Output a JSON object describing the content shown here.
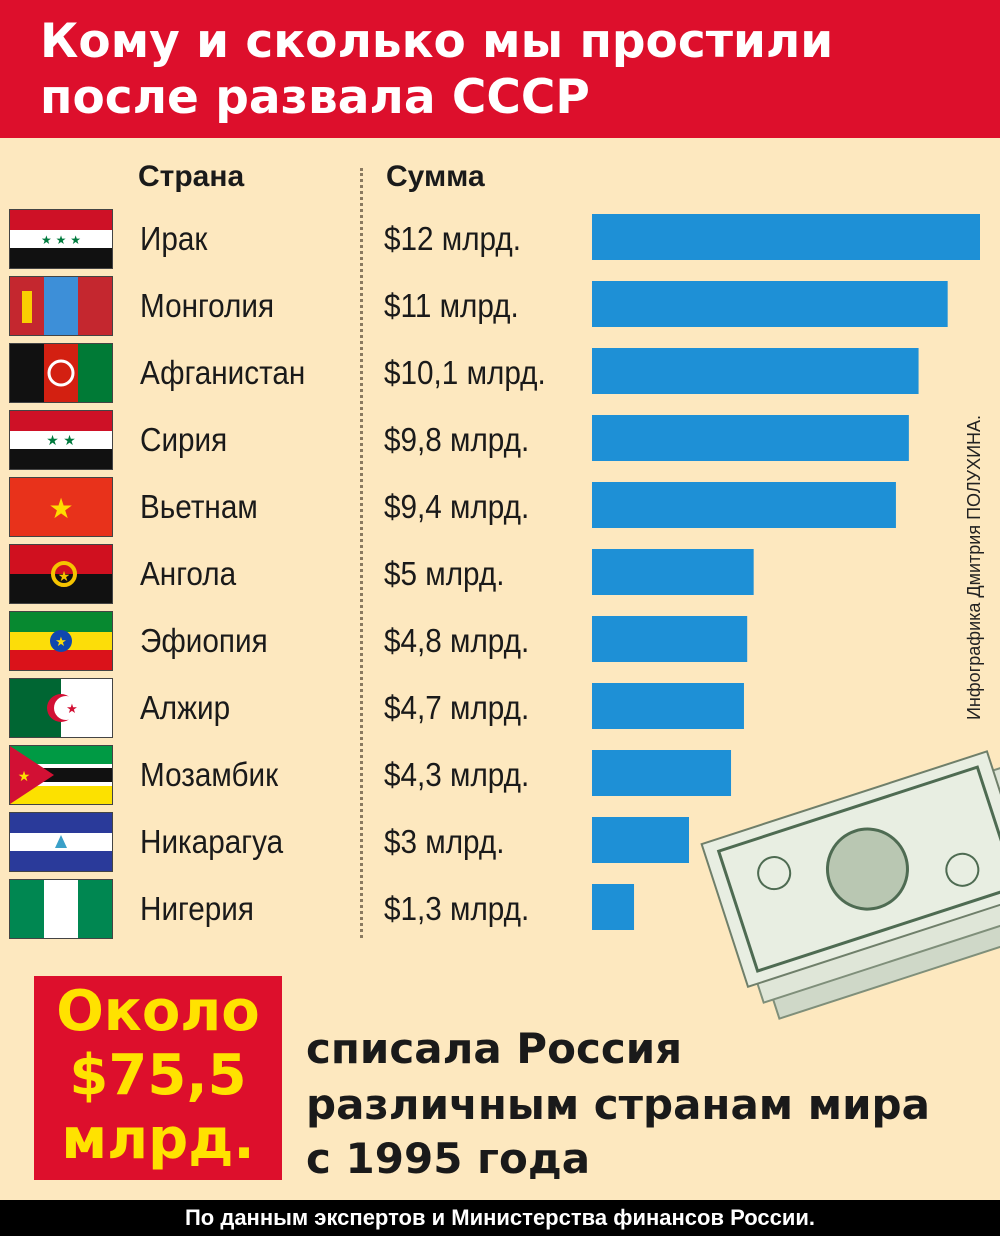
{
  "header": {
    "title_line1": "Кому и сколько мы простили",
    "title_line2": "после развала СССР"
  },
  "columns": {
    "country": "Страна",
    "amount": "Сумма"
  },
  "chart_data": {
    "type": "bar",
    "orientation": "horizontal",
    "categories": [
      "Ирак",
      "Монголия",
      "Афганистан",
      "Сирия",
      "Вьетнам",
      "Ангола",
      "Эфиопия",
      "Алжир",
      "Мозамбик",
      "Никарагуа",
      "Нигерия"
    ],
    "values": [
      12,
      11,
      10.1,
      9.8,
      9.4,
      5,
      4.8,
      4.7,
      4.3,
      3,
      1.3
    ],
    "value_labels": [
      "$12 млрд.",
      "$11 млрд.",
      "$10,1 млрд.",
      "$9,8 млрд.",
      "$9,4 млрд.",
      "$5 млрд.",
      "$4,8 млрд.",
      "$4,7 млрд.",
      "$4,3 млрд.",
      "$3 млрд.",
      "$1,3 млрд."
    ],
    "bar_color": "#1e90d6",
    "xlim": [
      0,
      12
    ],
    "grid": false,
    "legend": "none"
  },
  "flags": [
    "flag-iraq-icon",
    "flag-mongolia-icon",
    "flag-afghanistan-icon",
    "flag-syria-icon",
    "flag-vietnam-icon",
    "flag-angola-icon",
    "flag-ethiopia-icon",
    "flag-algeria-icon",
    "flag-mozambique-icon",
    "flag-nicaragua-icon",
    "flag-nigeria-icon"
  ],
  "credit": "Инфографика Дмитрия ПОЛУХИНА.",
  "total": {
    "line1": "Около",
    "line2": "$75,5",
    "line3": "млрд."
  },
  "description": {
    "line1": "списала Россия",
    "line2": "различным странам мира",
    "line3": "с 1995 года"
  },
  "footer": "По данным экспертов и Министерства финансов России.",
  "colors": {
    "header_bg": "#dd0f2c",
    "background": "#fde8bf",
    "total_text": "#ffe200"
  }
}
